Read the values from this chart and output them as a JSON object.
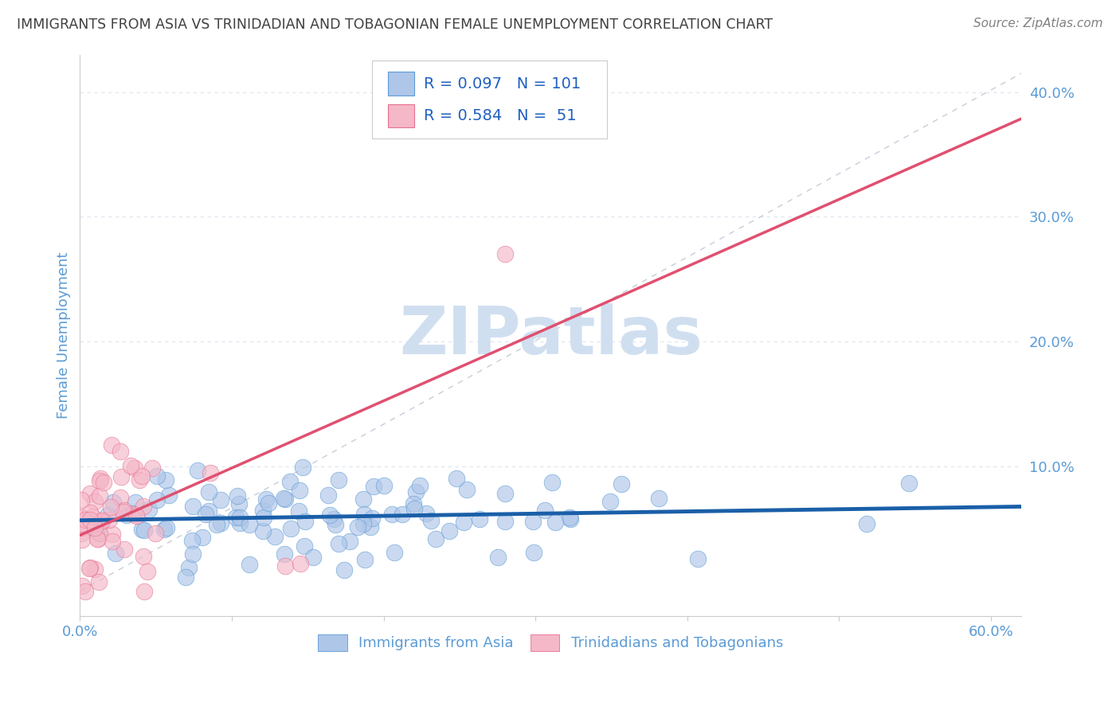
{
  "title": "IMMIGRANTS FROM ASIA VS TRINIDADIAN AND TOBAGONIAN FEMALE UNEMPLOYMENT CORRELATION CHART",
  "source": "Source: ZipAtlas.com",
  "ylabel": "Female Unemployment",
  "xlim": [
    0.0,
    0.62
  ],
  "ylim": [
    -0.02,
    0.43
  ],
  "x_tick_positions": [
    0.0,
    0.1,
    0.2,
    0.3,
    0.4,
    0.5,
    0.6
  ],
  "x_tick_labels": [
    "0.0%",
    "",
    "",
    "",
    "",
    "",
    "60.0%"
  ],
  "y_tick_positions": [
    0.1,
    0.2,
    0.3,
    0.4
  ],
  "y_tick_labels": [
    "10.0%",
    "20.0%",
    "30.0%",
    "40.0%"
  ],
  "R_blue": 0.097,
  "N_blue": 101,
  "R_pink": 0.584,
  "N_pink": 51,
  "blue_scatter_color": "#aec6e8",
  "blue_scatter_edge": "#5b9bd5",
  "pink_scatter_color": "#f4b8c8",
  "pink_scatter_edge": "#e87090",
  "trend_line_blue_color": "#1a5fa8",
  "trend_line_pink_color": "#e05070",
  "ref_line_color": "#c0c8d4",
  "watermark_color": "#d0dff0",
  "title_color": "#404040",
  "source_color": "#808080",
  "axis_label_color": "#5b9bd5",
  "grid_color": "#dde5ee",
  "background_color": "#ffffff",
  "legend_label_blue": "Immigrants from Asia",
  "legend_label_pink": "Trinidadians and Tobagonians",
  "blue_seed": 42,
  "pink_seed": 7
}
